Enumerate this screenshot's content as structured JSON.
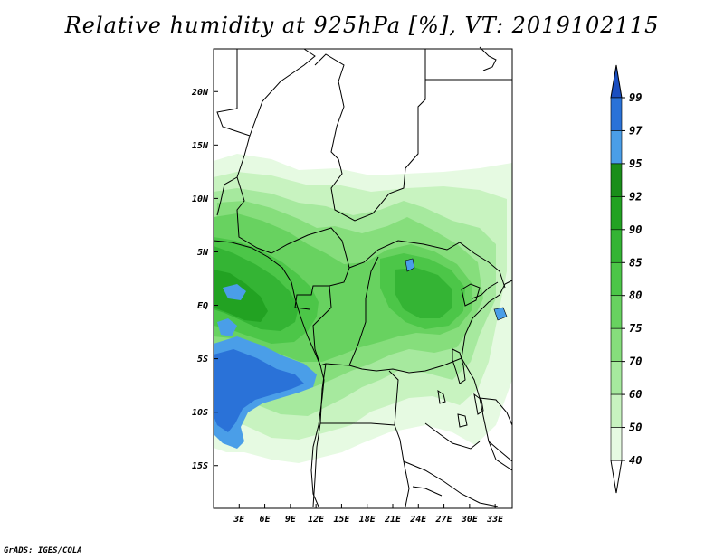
{
  "title": "Relative humidity at 925hPa [%], VT: 2019102115",
  "credit": "GrADS: IGES/COLA",
  "map": {
    "lat_labels": [
      "20N",
      "15N",
      "10N",
      "5N",
      "EQ",
      "5S",
      "10S",
      "15S"
    ],
    "lon_labels": [
      "3E",
      "6E",
      "9E",
      "12E",
      "15E",
      "18E",
      "21E",
      "24E",
      "27E",
      "30E",
      "33E"
    ],
    "lat_range": [
      -19,
      24
    ],
    "lon_range": [
      0,
      35
    ]
  },
  "colorbar": {
    "levels": [
      "40",
      "50",
      "60",
      "70",
      "75",
      "80",
      "85",
      "90",
      "92",
      "95",
      "97",
      "99"
    ],
    "colors": [
      "#ffffff",
      "#e6fae2",
      "#c8f3c0",
      "#a6e99e",
      "#86de7c",
      "#68d260",
      "#4cc648",
      "#34b434",
      "#22a222",
      "#1a8e1a",
      "#4a9ee8",
      "#2a72d8",
      "#1a4ec0"
    ]
  }
}
